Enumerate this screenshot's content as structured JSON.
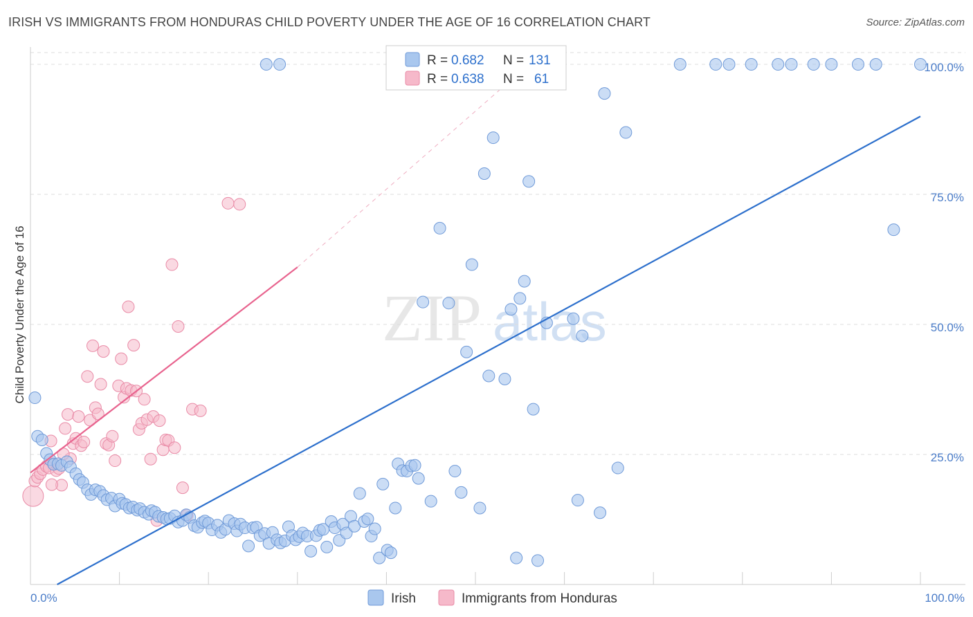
{
  "title": "IRISH VS IMMIGRANTS FROM HONDURAS CHILD POVERTY UNDER THE AGE OF 16 CORRELATION CHART",
  "source": "Source: ZipAtlas.com",
  "watermark": {
    "zip": "ZIP",
    "atlas": "atlas"
  },
  "colors": {
    "irish_fill": "#a9c7ee",
    "irish_stroke": "#6f9ad8",
    "irish_line": "#2c6fcc",
    "honduras_fill": "#f6b9ca",
    "honduras_stroke": "#e98aa6",
    "honduras_line": "#e8638e",
    "tick_text": "#4a7cc8",
    "grid": "#dddddd"
  },
  "legend": {
    "irish": {
      "r_label": "R = ",
      "r_value": "0.682",
      "n_label": "N = ",
      "n_value": "131"
    },
    "honduras": {
      "r_label": "R = ",
      "r_value": "0.638",
      "n_label": "N = ",
      "n_value": "61"
    }
  },
  "chart_data": {
    "type": "scatter",
    "title": "IRISH VS IMMIGRANTS FROM HONDURAS CHILD POVERTY UNDER THE AGE OF 16 CORRELATION CHART",
    "xlabel": "",
    "ylabel": "Child Poverty Under the Age of 16",
    "xlim": [
      0,
      100
    ],
    "ylim": [
      0,
      102
    ],
    "x_tick_labels": [
      "0.0%",
      "100.0%"
    ],
    "y_ticks": [
      25,
      50,
      75,
      100
    ],
    "y_tick_labels": [
      "25.0%",
      "50.0%",
      "75.0%",
      "100.0%"
    ],
    "grid": true,
    "legend_position": "top-center",
    "series": [
      {
        "name": "Irish",
        "regression": {
          "x": [
            3,
            100
          ],
          "y": [
            0,
            90
          ]
        },
        "points": [
          [
            0.5,
            35.9
          ],
          [
            0.8,
            28.5
          ],
          [
            1.3,
            27.8
          ],
          [
            1.8,
            25.2
          ],
          [
            2.2,
            24
          ],
          [
            2.6,
            23.1
          ],
          [
            3.1,
            23.2
          ],
          [
            3.5,
            22.9
          ],
          [
            4.1,
            23.6
          ],
          [
            4.5,
            22.6
          ],
          [
            5.1,
            21.3
          ],
          [
            5.5,
            20.2
          ],
          [
            5.9,
            19.6
          ],
          [
            6.4,
            18.2
          ],
          [
            6.8,
            17.3
          ],
          [
            7.3,
            18.2
          ],
          [
            7.8,
            17.9
          ],
          [
            8.2,
            17.1
          ],
          [
            8.6,
            16.3
          ],
          [
            9.1,
            16.6
          ],
          [
            9.5,
            15.1
          ],
          [
            10,
            16.4
          ],
          [
            10.3,
            15.6
          ],
          [
            10.7,
            15.4
          ],
          [
            11.1,
            14.7
          ],
          [
            11.5,
            14.9
          ],
          [
            12,
            14.3
          ],
          [
            12.3,
            14.6
          ],
          [
            12.8,
            13.9
          ],
          [
            13.3,
            13.5
          ],
          [
            13.6,
            14.2
          ],
          [
            14,
            13.9
          ],
          [
            14.4,
            13.1
          ],
          [
            14.9,
            12.9
          ],
          [
            15.3,
            12.6
          ],
          [
            15.7,
            12.7
          ],
          [
            16.2,
            13.2
          ],
          [
            16.6,
            12
          ],
          [
            17.1,
            12.3
          ],
          [
            17.5,
            13.4
          ],
          [
            17.9,
            12.9
          ],
          [
            18.4,
            11.3
          ],
          [
            18.8,
            11
          ],
          [
            19.3,
            11.9
          ],
          [
            19.6,
            12.2
          ],
          [
            20,
            11.8
          ],
          [
            20.4,
            10.5
          ],
          [
            21,
            11.4
          ],
          [
            21.4,
            10
          ],
          [
            21.9,
            10.6
          ],
          [
            22.3,
            12.3
          ],
          [
            22.9,
            11.7
          ],
          [
            23.2,
            10.3
          ],
          [
            23.6,
            11.6
          ],
          [
            24.1,
            10.9
          ],
          [
            24.5,
            7.4
          ],
          [
            25,
            10.9
          ],
          [
            25.4,
            11
          ],
          [
            25.8,
            9.4
          ],
          [
            26.3,
            9.8
          ],
          [
            26.8,
            7.9
          ],
          [
            27.2,
            10
          ],
          [
            27.7,
            8.6
          ],
          [
            28.1,
            8
          ],
          [
            28.6,
            8.4
          ],
          [
            29,
            11.1
          ],
          [
            29.4,
            9.4
          ],
          [
            29.8,
            8.6
          ],
          [
            30.2,
            9.2
          ],
          [
            30.6,
            9.9
          ],
          [
            31.1,
            9.3
          ],
          [
            31.5,
            6.4
          ],
          [
            32.1,
            9.4
          ],
          [
            32.5,
            10.4
          ],
          [
            32.9,
            10.6
          ],
          [
            33.3,
            7.2
          ],
          [
            33.8,
            12.1
          ],
          [
            34.2,
            10.9
          ],
          [
            34.7,
            8.5
          ],
          [
            35.1,
            11.6
          ],
          [
            35.5,
            9.9
          ],
          [
            36,
            13.1
          ],
          [
            36.4,
            11.2
          ],
          [
            37,
            17.5
          ],
          [
            37.5,
            12.1
          ],
          [
            37.9,
            12.6
          ],
          [
            38.3,
            9.3
          ],
          [
            38.7,
            10.7
          ],
          [
            39.2,
            5.1
          ],
          [
            39.6,
            19.3
          ],
          [
            40.1,
            6.6
          ],
          [
            40.5,
            6.1
          ],
          [
            41,
            14.7
          ],
          [
            41.3,
            23.2
          ],
          [
            41.8,
            21.9
          ],
          [
            42.3,
            21.8
          ],
          [
            42.8,
            22.8
          ],
          [
            43.2,
            22.9
          ],
          [
            43.6,
            20.4
          ],
          [
            44.1,
            54.3
          ],
          [
            45,
            16
          ],
          [
            46,
            68.5
          ],
          [
            47,
            54.1
          ],
          [
            47.7,
            21.8
          ],
          [
            48.4,
            17.7
          ],
          [
            49,
            44.7
          ],
          [
            49.6,
            61.5
          ],
          [
            50.5,
            14.7
          ],
          [
            51,
            79
          ],
          [
            51.5,
            40.1
          ],
          [
            52,
            85.9
          ],
          [
            53.3,
            39.5
          ],
          [
            54,
            52.9
          ],
          [
            54.6,
            5.1
          ],
          [
            55,
            55
          ],
          [
            55.5,
            58.3
          ],
          [
            56,
            77.5
          ],
          [
            56.5,
            33.7
          ],
          [
            57,
            4.6
          ],
          [
            58,
            50.3
          ],
          [
            61,
            51.1
          ],
          [
            61.5,
            16.2
          ],
          [
            62,
            47.8
          ],
          [
            64,
            13.8
          ],
          [
            64.5,
            94.4
          ],
          [
            66,
            22.4
          ],
          [
            66.9,
            86.9
          ],
          [
            73,
            100
          ],
          [
            77,
            100
          ],
          [
            78.5,
            100
          ],
          [
            81,
            100
          ],
          [
            84,
            100
          ],
          [
            85.5,
            100
          ],
          [
            88,
            100
          ],
          [
            90,
            100
          ],
          [
            93,
            100
          ],
          [
            95,
            100
          ],
          [
            97,
            68.2
          ],
          [
            100,
            100
          ],
          [
            26.5,
            100
          ],
          [
            28,
            100
          ]
        ]
      },
      {
        "name": "Immigrants from Honduras",
        "regression": {
          "x": [
            0,
            30
          ],
          "y": [
            21.5,
            61
          ]
        },
        "regression_extension": {
          "x": [
            30,
            56
          ],
          "y": [
            61,
            100
          ]
        },
        "points": [
          [
            0.3,
            17
          ],
          [
            0.5,
            19.9
          ],
          [
            0.8,
            20.6
          ],
          [
            1.1,
            21.3
          ],
          [
            1.4,
            22.1
          ],
          [
            1.8,
            22.7
          ],
          [
            2.1,
            22.4
          ],
          [
            2.3,
            27.6
          ],
          [
            2.6,
            23.2
          ],
          [
            2.9,
            21.9
          ],
          [
            3.2,
            22.3
          ],
          [
            3.5,
            19.1
          ],
          [
            3.9,
            30
          ],
          [
            4.2,
            32.7
          ],
          [
            4.5,
            24.2
          ],
          [
            4.8,
            27.1
          ],
          [
            5.1,
            28.1
          ],
          [
            5.4,
            32.3
          ],
          [
            5.7,
            26.7
          ],
          [
            6,
            27.4
          ],
          [
            6.4,
            40
          ],
          [
            6.7,
            31.6
          ],
          [
            7,
            45.9
          ],
          [
            7.3,
            34
          ],
          [
            7.6,
            32.8
          ],
          [
            7.9,
            38.5
          ],
          [
            8.2,
            44.8
          ],
          [
            8.5,
            27.1
          ],
          [
            8.8,
            26.8
          ],
          [
            9.2,
            28.5
          ],
          [
            9.5,
            23.8
          ],
          [
            9.9,
            38.2
          ],
          [
            10.2,
            43.4
          ],
          [
            10.5,
            36
          ],
          [
            10.8,
            37.7
          ],
          [
            11,
            53.4
          ],
          [
            11.3,
            37.3
          ],
          [
            11.6,
            46
          ],
          [
            11.9,
            37.2
          ],
          [
            12.2,
            29.8
          ],
          [
            12.5,
            31
          ],
          [
            12.8,
            35.6
          ],
          [
            13.1,
            31.7
          ],
          [
            13.5,
            24.1
          ],
          [
            13.8,
            32.3
          ],
          [
            14.2,
            12.3
          ],
          [
            14.5,
            31.5
          ],
          [
            14.9,
            25.9
          ],
          [
            15.2,
            27.8
          ],
          [
            15.5,
            27.7
          ],
          [
            15.9,
            61.5
          ],
          [
            16.2,
            26.3
          ],
          [
            16.6,
            49.6
          ],
          [
            17.1,
            18.6
          ],
          [
            17.6,
            13.3
          ],
          [
            18.2,
            33.7
          ],
          [
            19.1,
            33.4
          ],
          [
            22.2,
            73.3
          ],
          [
            23.5,
            73.1
          ],
          [
            2.4,
            19.2
          ],
          [
            3.7,
            25.1
          ]
        ]
      }
    ]
  }
}
